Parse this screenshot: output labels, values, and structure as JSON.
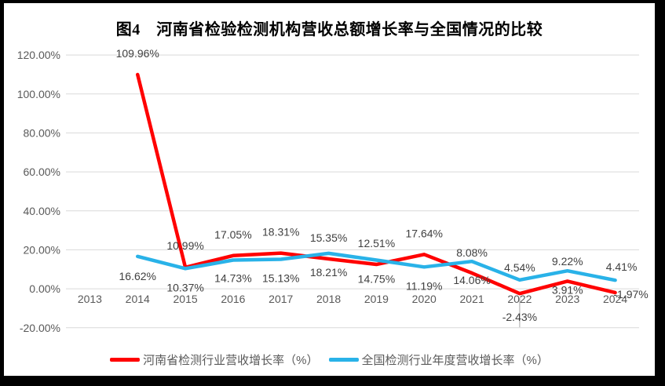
{
  "chart_data": {
    "type": "line",
    "title": "图4　河南省检验检测机构营收总额增长率与全国情况的比较",
    "categories": [
      "2013",
      "2014",
      "2015",
      "2016",
      "2017",
      "2018",
      "2019",
      "2020",
      "2021",
      "2022",
      "2023",
      "2024"
    ],
    "series": [
      {
        "name": "河南省检测行业营收增长率（%）",
        "color": "#FF0000",
        "values": [
          null,
          109.96,
          10.99,
          17.05,
          18.31,
          15.35,
          12.51,
          17.64,
          8.08,
          -2.43,
          3.91,
          -1.97
        ]
      },
      {
        "name": "全国检测行业年度营收增长率（%）",
        "color": "#29B2E8",
        "values": [
          null,
          16.62,
          10.37,
          14.73,
          15.13,
          18.21,
          14.75,
          11.19,
          14.06,
          4.54,
          9.22,
          4.41
        ]
      }
    ],
    "y_axis": {
      "ticks": [
        "120.00%",
        "100.00%",
        "80.00%",
        "60.00%",
        "40.00%",
        "20.00%",
        "0.00%",
        "-20.00%"
      ],
      "tick_values": [
        120,
        100,
        80,
        60,
        40,
        20,
        0,
        -20
      ],
      "ylim": [
        -20,
        120
      ]
    },
    "grid": true,
    "legend_position": "bottom",
    "data_label_format": "0.00%",
    "colors": {
      "grid": "#D9D9D9",
      "axis_text": "#595959",
      "data_label_text": "#404040",
      "title_text": "#000000",
      "frame": "#000000",
      "background": "#FFFFFF"
    }
  }
}
